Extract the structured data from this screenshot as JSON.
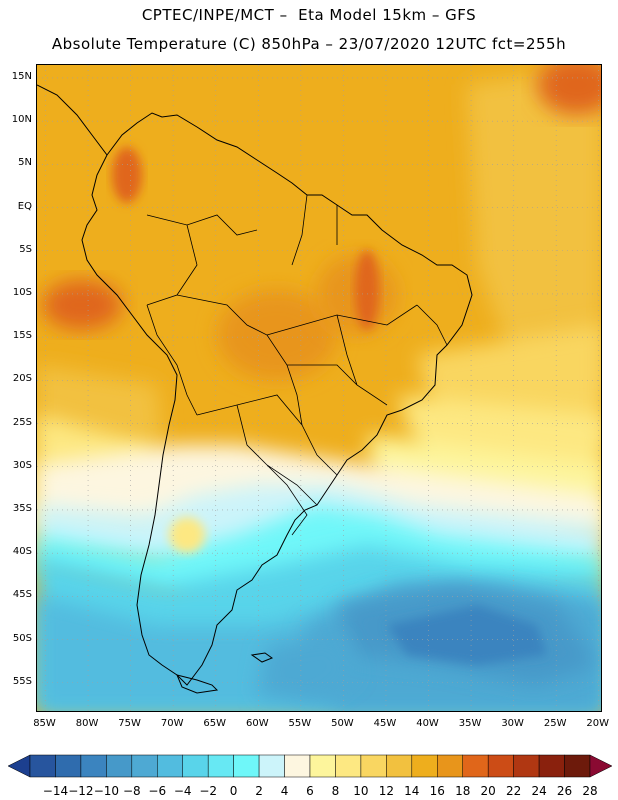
{
  "header": {
    "title_line1": "CPTEC/INPE/MCT –  Eta Model 15km – GFS",
    "title_line2": "Absolute Temperature (C) 850hPa – 23/07/2020 12UTC fct=255h"
  },
  "map": {
    "lat_labels": [
      "15N",
      "10N",
      "5N",
      "EQ",
      "5S",
      "10S",
      "15S",
      "20S",
      "25S",
      "30S",
      "35S",
      "40S",
      "45S",
      "50S",
      "55S"
    ],
    "lon_labels": [
      "85W",
      "80W",
      "75W",
      "70W",
      "65W",
      "60W",
      "55W",
      "50W",
      "45W",
      "40W",
      "35W",
      "30W",
      "25W",
      "20W"
    ],
    "lat_range": [
      16.5,
      -58.5
    ],
    "lon_range": [
      -86,
      -19.5
    ],
    "grid": true
  },
  "colorbar": {
    "labels": [
      "-14",
      "-12",
      "-10",
      "-8",
      "-6",
      "-4",
      "-2",
      "0",
      "2",
      "4",
      "6",
      "8",
      "10",
      "12",
      "14",
      "16",
      "18",
      "20",
      "22",
      "24",
      "26",
      "28"
    ],
    "colors": [
      "#1c3f8f",
      "#27559e",
      "#2f6cae",
      "#3b84bf",
      "#4699c9",
      "#4ea9d3",
      "#52bcdf",
      "#59d4ea",
      "#67e8f3",
      "#6ff7f9",
      "#ccf4fa",
      "#fdf6e0",
      "#fdf59c",
      "#fde882",
      "#f9d661",
      "#f2c13f",
      "#eeae1d",
      "#e8951b",
      "#e0661a",
      "#cc4c16",
      "#b03712",
      "#8a210d",
      "#6d1a0b",
      "#8a0a32"
    ]
  },
  "colors": {
    "land_outline": "#000000",
    "grid": "#a0a0a0"
  }
}
